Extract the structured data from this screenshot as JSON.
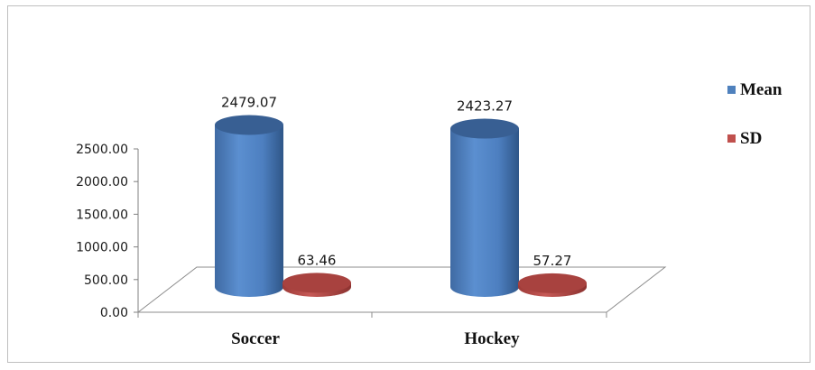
{
  "chart_data": {
    "type": "bar",
    "categories": [
      "Soccer",
      "Hockey"
    ],
    "series": [
      {
        "name": "Mean",
        "values": [
          2479.07,
          2423.27
        ],
        "color": "#4f81bd"
      },
      {
        "name": "SD",
        "values": [
          63.46,
          57.27
        ],
        "color": "#c0504d"
      }
    ],
    "data_labels": {
      "Mean": [
        "2479.07",
        "2423.27"
      ],
      "SD": [
        "63.46",
        "57.27"
      ]
    },
    "ytick_labels": [
      "0.00",
      "500.00",
      "1000.00",
      "1500.00",
      "2000.00",
      "2500.00"
    ],
    "yticks": [
      0,
      500,
      1000,
      1500,
      2000,
      2500
    ],
    "ylim": [
      0,
      2500
    ],
    "title": "",
    "xlabel": "",
    "ylabel": "",
    "legend": {
      "position": "right",
      "entries": [
        "Mean",
        "SD"
      ]
    },
    "grid": false,
    "style": "3d-cylinder"
  }
}
